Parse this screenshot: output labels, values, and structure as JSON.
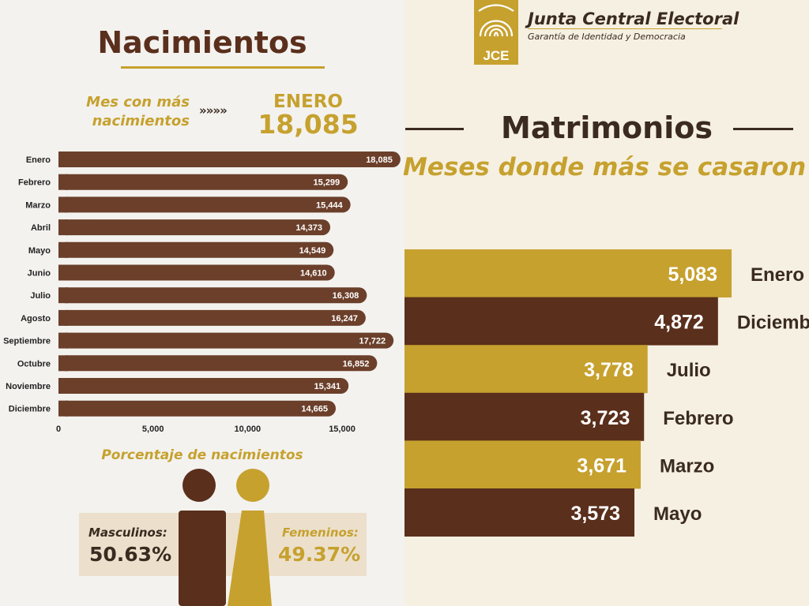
{
  "births": {
    "title": "Nacimientos",
    "top_label": "Mes con más nacimientos",
    "top_arrows": "»»»»",
    "top_month": "ENERO",
    "top_value": "18,085",
    "percent_title": "Porcentaje de nacimientos",
    "male_label": "Masculinos:",
    "male_value": "50.63%",
    "female_label": "Femeninos:",
    "female_value": "49.37%"
  },
  "header": {
    "org_name": "Junta Central Electoral",
    "slogan": "Garantía de Identidad y Democracia",
    "logo_text": "JCE"
  },
  "marriages": {
    "title": "Matrimonios",
    "subtitle": "Meses donde más se casaron"
  },
  "colors": {
    "brown": "#6b3f2a",
    "dark_brown": "#5a2f1c",
    "gold": "#c6a12e"
  },
  "chart_data": [
    {
      "type": "bar",
      "orientation": "horizontal",
      "categories": [
        "Enero",
        "Febrero",
        "Marzo",
        "Abril",
        "Mayo",
        "Junio",
        "Julio",
        "Agosto",
        "Septiembre",
        "Octubre",
        "Noviembre",
        "Diciembre"
      ],
      "values": [
        18085,
        15299,
        15444,
        14373,
        14549,
        14610,
        16308,
        16247,
        17722,
        16852,
        15341,
        14665
      ],
      "value_labels": [
        "18,085",
        "15,299",
        "15,444",
        "14,373",
        "14,549",
        "14,610",
        "16,308",
        "16,247",
        "17,722",
        "16,852",
        "15,341",
        "14,665"
      ],
      "x_ticks": [
        0,
        5000,
        10000,
        15000
      ],
      "x_tick_labels": [
        "0",
        "5,000",
        "10,000",
        "15,000"
      ],
      "xlim": [
        0,
        18300
      ],
      "grid": false
    },
    {
      "type": "bar",
      "orientation": "horizontal",
      "categories": [
        "Enero",
        "Diciembre",
        "Julio",
        "Febrero",
        "Marzo",
        "Mayo"
      ],
      "values": [
        5083,
        4872,
        3778,
        3723,
        3671,
        3573
      ],
      "value_labels": [
        "5,083",
        "4,872",
        "3,778",
        "3,723",
        "3,671",
        "3,573"
      ],
      "grid": false
    }
  ]
}
